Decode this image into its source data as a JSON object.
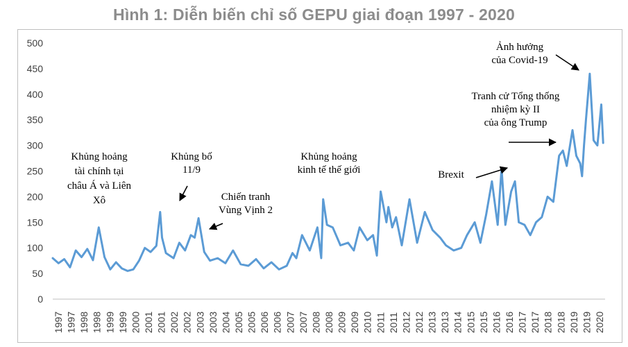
{
  "chart_data": {
    "type": "line",
    "title": "Hình 1: Diễn biến chỉ số GEPU giai đoạn 1997 - 2020",
    "xlabel": "",
    "ylabel": "",
    "ylim": [
      0,
      500
    ],
    "yticks": [
      0,
      50,
      100,
      150,
      200,
      250,
      300,
      350,
      400,
      450,
      500
    ],
    "xticks": [
      "1997",
      "1997",
      "1998",
      "1998",
      "1999",
      "1999",
      "2000",
      "2001",
      "2001",
      "2002",
      "2002",
      "2003",
      "2003",
      "2004",
      "2005",
      "2005",
      "2006",
      "2006",
      "2007",
      "2007",
      "2008",
      "2008",
      "2009",
      "2009",
      "2010",
      "2011",
      "2011",
      "2012",
      "2012",
      "2013",
      "2013",
      "2014",
      "2015",
      "2015",
      "2016",
      "2016",
      "2017",
      "2017",
      "2018",
      "2018",
      "2019",
      "2019",
      "2020"
    ],
    "grid": false,
    "line_color": "#5b9bd5",
    "series": [
      {
        "x": [
          "1997-01",
          "1997-04",
          "1997-07",
          "1997-10",
          "1998-01",
          "1998-04",
          "1998-07",
          "1998-10",
          "1999-01",
          "1999-04",
          "1999-07",
          "1999-10",
          "2000-01",
          "2000-04",
          "2000-07",
          "2000-10",
          "2001-01",
          "2001-04",
          "2001-07",
          "2001-09",
          "2001-10",
          "2001-12",
          "2002-04",
          "2002-07",
          "2002-10",
          "2003-01",
          "2003-03",
          "2003-05",
          "2003-08",
          "2003-11",
          "2004-03",
          "2004-07",
          "2004-11",
          "2005-03",
          "2005-07",
          "2005-11",
          "2006-03",
          "2006-07",
          "2006-11",
          "2007-03",
          "2007-06",
          "2007-08",
          "2007-11",
          "2008-03",
          "2008-07",
          "2008-09",
          "2008-10",
          "2008-12",
          "2009-03",
          "2009-07",
          "2009-11",
          "2010-02",
          "2010-05",
          "2010-09",
          "2010-12",
          "2011-02",
          "2011-04",
          "2011-07",
          "2011-08",
          "2011-10",
          "2011-12",
          "2012-03",
          "2012-07",
          "2012-11",
          "2013-03",
          "2013-07",
          "2013-11",
          "2014-02",
          "2014-06",
          "2014-10",
          "2015-01",
          "2015-05",
          "2015-08",
          "2015-11",
          "2016-02",
          "2016-05",
          "2016-07",
          "2016-09",
          "2016-12",
          "2017-02",
          "2017-04",
          "2017-07",
          "2017-10",
          "2018-01",
          "2018-04",
          "2018-07",
          "2018-10",
          "2019-01",
          "2019-03",
          "2019-05",
          "2019-08",
          "2019-10",
          "2019-12",
          "2020-01",
          "2020-02",
          "2020-03",
          "2020-05",
          "2020-07",
          "2020-09",
          "2020-11",
          "2020-12"
        ],
        "y": [
          80,
          70,
          78,
          62,
          95,
          82,
          98,
          76,
          140,
          82,
          58,
          72,
          60,
          55,
          58,
          75,
          100,
          92,
          104,
          170,
          120,
          90,
          80,
          110,
          95,
          125,
          120,
          158,
          92,
          75,
          80,
          70,
          95,
          68,
          65,
          78,
          60,
          72,
          58,
          65,
          90,
          80,
          125,
          95,
          140,
          80,
          195,
          145,
          140,
          105,
          110,
          95,
          140,
          115,
          125,
          85,
          210,
          150,
          180,
          140,
          160,
          105,
          195,
          110,
          170,
          135,
          120,
          105,
          95,
          100,
          125,
          150,
          110,
          165,
          230,
          145,
          255,
          145,
          210,
          230,
          150,
          145,
          125,
          150,
          160,
          200,
          190,
          280,
          290,
          260,
          330,
          280,
          265,
          240,
          300,
          350,
          440,
          310,
          300,
          380,
          305
        ]
      }
    ],
    "annotations": [
      {
        "lines": [
          "Khủng hoảng",
          "tài chính tại",
          "châu Á và Liên",
          "Xô"
        ]
      },
      {
        "lines": [
          "Khủng bố",
          "11/9"
        ]
      },
      {
        "lines": [
          "Chiến tranh",
          "Vùng Vịnh 2"
        ]
      },
      {
        "lines": [
          "Khủng hoảng",
          "kinh tế thế giới"
        ]
      },
      {
        "lines": [
          "Brexit"
        ]
      },
      {
        "lines": [
          "Tranh cử Tổng thống",
          "nhiệm kỳ II",
          "của ông Trump"
        ]
      },
      {
        "lines": [
          "Ảnh hưởng",
          "của Covid-19"
        ]
      }
    ]
  }
}
